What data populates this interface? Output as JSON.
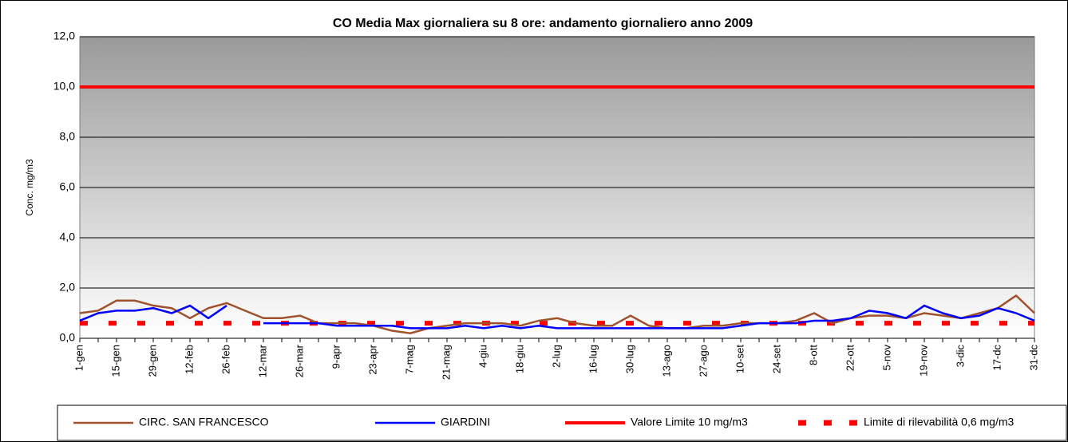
{
  "chart_data": {
    "type": "line",
    "title": "CO Media Max giornaliera  su  8 ore: andamento giornaliero  anno 2009",
    "y_label": "Conc. mg/m3",
    "categories": [
      "1-gen",
      null,
      "15-gen",
      null,
      "29-gen",
      null,
      "12-feb",
      null,
      "26-feb",
      null,
      "12-mar",
      null,
      "26-mar",
      null,
      "9-apr",
      null,
      "23-apr",
      null,
      "7-mag",
      null,
      "21-mag",
      null,
      "4-giu",
      null,
      "18-giu",
      null,
      "2-lug",
      null,
      "16-lug",
      null,
      "30-lug",
      null,
      "13-ago",
      null,
      "27-ago",
      null,
      "10-set",
      null,
      "24-set",
      null,
      "8-ott",
      null,
      "22-ott",
      null,
      "5-nov",
      null,
      "19-nov",
      null,
      "3-dic",
      null,
      "17-dc",
      null,
      "31-dc"
    ],
    "series": [
      {
        "name": "CIRC. SAN FRANCESCO",
        "color": "#a0522d",
        "values": [
          1.0,
          1.1,
          1.5,
          1.5,
          1.3,
          1.2,
          0.8,
          1.2,
          1.4,
          1.1,
          0.8,
          0.8,
          0.9,
          0.6,
          0.6,
          0.6,
          0.5,
          0.3,
          0.2,
          0.4,
          0.5,
          0.6,
          0.6,
          0.6,
          0.5,
          0.7,
          0.8,
          0.6,
          0.5,
          0.5,
          0.9,
          0.5,
          0.4,
          0.4,
          0.5,
          0.5,
          0.6,
          0.6,
          0.6,
          0.7,
          1.0,
          0.6,
          0.8,
          0.9,
          0.9,
          0.8,
          1.0,
          0.9,
          0.8,
          1.0,
          1.2,
          1.7,
          1.0
        ]
      },
      {
        "name": "GIARDINI",
        "color": "#0000ff",
        "values": [
          0.7,
          1.0,
          1.1,
          1.1,
          1.2,
          1.0,
          1.3,
          0.8,
          1.3,
          null,
          0.6,
          0.6,
          0.6,
          0.6,
          0.5,
          0.5,
          0.5,
          0.5,
          0.4,
          0.4,
          0.4,
          0.5,
          0.4,
          0.5,
          0.4,
          0.5,
          0.4,
          0.4,
          0.4,
          0.4,
          0.4,
          0.4,
          0.4,
          0.4,
          0.4,
          0.4,
          0.5,
          0.6,
          0.6,
          0.6,
          0.7,
          0.7,
          0.8,
          1.1,
          1.0,
          0.8,
          1.3,
          1.0,
          0.8,
          0.9,
          1.2,
          1.0,
          0.7
        ]
      }
    ],
    "reference_lines": [
      {
        "name": "Valore Limite 10 mg/m3",
        "color": "#ff0000",
        "value": 10,
        "dashed": false
      },
      {
        "name": "Limite di rilevabilità 0,6 mg/m3",
        "color": "#ff0000",
        "value": 0.6,
        "dashed": true
      }
    ],
    "ylim": [
      0,
      12
    ],
    "yticks": [
      {
        "value": 0,
        "label": "0,0"
      },
      {
        "value": 2,
        "label": "2,0"
      },
      {
        "value": 4,
        "label": "4,0"
      },
      {
        "value": 6,
        "label": "6,0"
      },
      {
        "value": 8,
        "label": "8,0"
      },
      {
        "value": 10,
        "label": "10,0"
      },
      {
        "value": 12,
        "label": "12,0"
      }
    ],
    "grid": true
  }
}
